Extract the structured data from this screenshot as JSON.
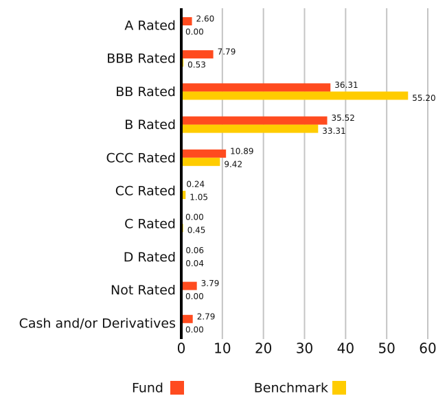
{
  "chart_data": {
    "type": "hbar",
    "categories": [
      "A Rated",
      "BBB Rated",
      "BB Rated",
      "B Rated",
      "CCC Rated",
      "CC Rated",
      "C Rated",
      "D Rated",
      "Not Rated",
      "Cash and/or Derivatives"
    ],
    "series": [
      {
        "name": "Fund",
        "color": "#ff4b1f",
        "values": [
          2.6,
          7.79,
          36.31,
          35.52,
          10.89,
          0.24,
          0,
          0.06,
          3.79,
          2.79
        ],
        "value_labels": [
          "2.60",
          "7.79",
          "36.31",
          "35.52",
          "10.89",
          "0.24",
          "0.00",
          "0.06",
          "3.79",
          "2.79"
        ]
      },
      {
        "name": "Benchmark",
        "color": "#ffcc00",
        "values": [
          0,
          0.53,
          55.2,
          33.31,
          9.42,
          1.05,
          0.45,
          0.04,
          0,
          0
        ],
        "value_labels": [
          "0.00",
          "0.53",
          "55.20",
          "33.31",
          "9.42",
          "1.05",
          "0.45",
          "0.04",
          "0.00",
          "0.00"
        ]
      }
    ],
    "xlim": [
      0,
      60
    ],
    "xticks": [
      0,
      10,
      20,
      30,
      40,
      50,
      60
    ],
    "grid": true,
    "legend": "bottom"
  }
}
